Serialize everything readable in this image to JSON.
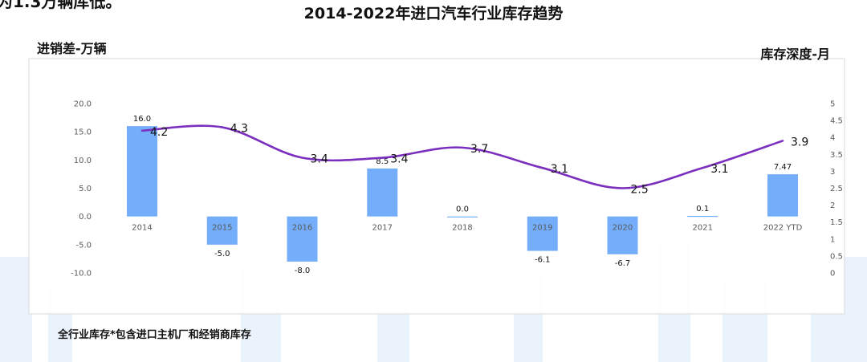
{
  "header": {
    "clipped_text": "为1.3万辆库低。",
    "title": "2014-2022年进口汽车行业库存趋势",
    "left_axis_title": "进销差-万辆",
    "right_axis_title": "库存深度-月"
  },
  "footnote": "全行业库存*包含进口主机厂和经销商库存",
  "colors": {
    "bar": "#74AEFB",
    "line": "#7B2FBE",
    "frame": "#D9D9D9",
    "axis_text": "#595959"
  },
  "chart_data": {
    "type": "bar",
    "categories": [
      "2014",
      "2015",
      "2016",
      "2017",
      "2018",
      "2019",
      "2020",
      "2021",
      "2022 YTD"
    ],
    "series": [
      {
        "type": "bar",
        "axis": "left",
        "values": [
          16.0,
          -5.0,
          -8.0,
          8.5,
          0.0,
          -6.1,
          -6.7,
          0.1,
          7.47
        ],
        "labels": [
          "16.0",
          "-5.0",
          "-8.0",
          "8.5",
          "0.0",
          "-6.1",
          "-6.7",
          "0.1",
          "7.47"
        ]
      },
      {
        "type": "line",
        "axis": "right",
        "smooth": true,
        "values": [
          4.2,
          4.3,
          3.4,
          3.4,
          3.7,
          3.1,
          2.5,
          3.1,
          3.9
        ],
        "labels": [
          "4.2",
          "4.3",
          "3.4",
          "3.4",
          "3.7",
          "3.1",
          "2.5",
          "3.1",
          "3.9"
        ]
      }
    ],
    "left_axis": {
      "ylim": [
        -10,
        20
      ],
      "ticks": [
        20,
        15,
        10,
        5,
        0,
        -5,
        -10
      ],
      "tick_labels": [
        "20.0",
        "15.0",
        "10.0",
        "5.0",
        "0.0",
        "-5.0",
        "-10.0"
      ]
    },
    "right_axis": {
      "ylim": [
        0,
        5
      ],
      "ticks": [
        5,
        4.5,
        4,
        3.5,
        3,
        2.5,
        2,
        1.5,
        1,
        0.5,
        0
      ],
      "tick_labels": [
        "5",
        "4.5",
        "4",
        "3.5",
        "3",
        "2.5",
        "2",
        "1.5",
        "1",
        "0.5",
        "0"
      ]
    },
    "grid": false,
    "legend": "none"
  }
}
